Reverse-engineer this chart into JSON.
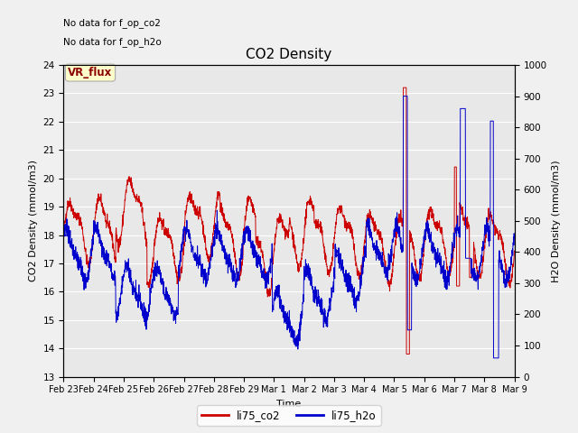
{
  "title": "CO2 Density",
  "xlabel": "Time",
  "ylabel_left": "CO2 Density (mmol/m3)",
  "ylabel_right": "H2O Density (mmol/m3)",
  "ylim_left": [
    13.0,
    24.0
  ],
  "ylim_right": [
    0,
    1000
  ],
  "yticks_left": [
    13.0,
    14.0,
    15.0,
    16.0,
    17.0,
    18.0,
    19.0,
    20.0,
    21.0,
    22.0,
    23.0,
    24.0
  ],
  "yticks_right": [
    0,
    100,
    200,
    300,
    400,
    500,
    600,
    700,
    800,
    900,
    1000
  ],
  "bg_color": "#e8e8e8",
  "fig_color": "#f0f0f0",
  "co2_color": "#cc0000",
  "h2o_color": "#0000cc",
  "note1": "No data for f_op_co2",
  "note2": "No data for f_op_h2o",
  "vr_flux_label": "VR_flux",
  "legend_co2": "li75_co2",
  "legend_h2o": "li75_h2o",
  "xtick_labels": [
    "Feb 23",
    "Feb 24",
    "Feb 25",
    "Feb 26",
    "Feb 27",
    "Feb 28",
    "Feb 29",
    "Mar 1",
    "Mar 2",
    "Mar 3",
    "Mar 4",
    "Mar 5",
    "Mar 6",
    "Mar 7",
    "Mar 8",
    "Mar 9"
  ]
}
